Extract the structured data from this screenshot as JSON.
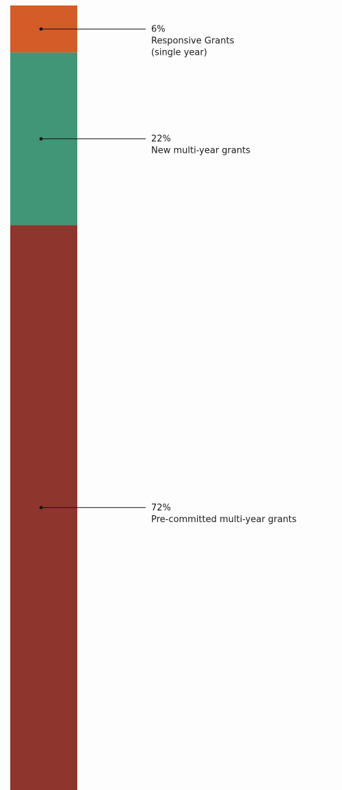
{
  "chart_data": {
    "type": "bar",
    "stacked": true,
    "orientation": "vertical",
    "unit": "%",
    "total": 100,
    "segments": [
      {
        "value": 6,
        "value_label": "6%",
        "label_lines": [
          "Responsive Grants",
          "(single year)"
        ],
        "color": "#d35c28"
      },
      {
        "value": 22,
        "value_label": "22%",
        "label_lines": [
          "New multi-year grants"
        ],
        "color": "#409677"
      },
      {
        "value": 72,
        "value_label": "72%",
        "label_lines": [
          "Pre-committed multi-year grants"
        ],
        "color": "#8e352e"
      }
    ]
  }
}
